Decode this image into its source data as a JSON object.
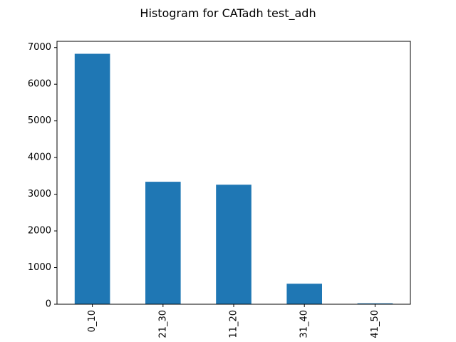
{
  "chart_data": {
    "type": "bar",
    "title": "Histogram for CATadh test_adh",
    "categories": [
      "0_10",
      "21_30",
      "11_20",
      "31_40",
      "41_50"
    ],
    "values": [
      6830,
      3340,
      3260,
      560,
      25
    ],
    "ylim": [
      0,
      7170
    ],
    "yticks": [
      0,
      1000,
      2000,
      3000,
      4000,
      5000,
      6000,
      7000
    ],
    "bar_color": "#1f77b4",
    "grid": false,
    "legend": "none"
  }
}
